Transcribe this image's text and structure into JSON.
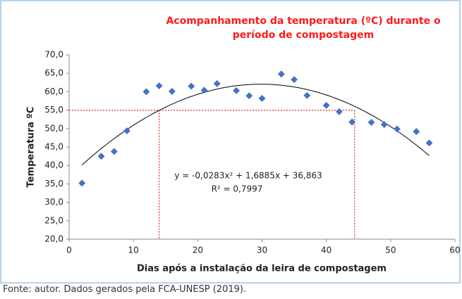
{
  "chart_data": {
    "type": "scatter",
    "title": "Acompanhamento da temperatura (ºC) durante o período de compostagem",
    "xlabel": "Dias após a instalação da leira de compostagem",
    "ylabel": "Temperatura ºC",
    "x": [
      2,
      5,
      7,
      9,
      12,
      14,
      16,
      19,
      21,
      23,
      26,
      28,
      30,
      33,
      35,
      37,
      40,
      42,
      44,
      47,
      49,
      51,
      54,
      56
    ],
    "series": [
      {
        "color": "#4472c4",
        "values": [
          35.2,
          42.5,
          43.8,
          49.4,
          60.0,
          61.6,
          60.1,
          61.5,
          60.4,
          62.2,
          60.3,
          58.9,
          58.2,
          64.8,
          63.3,
          59.0,
          56.3,
          54.6,
          51.8,
          51.7,
          51.1,
          49.9,
          49.2,
          46.1
        ]
      }
    ],
    "xlim": [
      0,
      60
    ],
    "xticks": [
      0,
      10,
      20,
      30,
      40,
      50,
      60
    ],
    "ylim": [
      20,
      70
    ],
    "yticks": [
      {
        "value": 20,
        "label": "20,0"
      },
      {
        "value": 25,
        "label": "25,0"
      },
      {
        "value": 30,
        "label": "30,0"
      },
      {
        "value": 35,
        "label": "35,0"
      },
      {
        "value": 40,
        "label": "40,0"
      },
      {
        "value": 45,
        "label": "45,0"
      },
      {
        "value": 50,
        "label": "50,0"
      },
      {
        "value": 55,
        "label": "55,0"
      },
      {
        "value": 60,
        "label": "60,0"
      },
      {
        "value": 65,
        "label": "65,0"
      },
      {
        "value": 70,
        "label": "70,0"
      }
    ],
    "trendline": {
      "equation": "y = -0,0283x² + 1,6885x + 36,863",
      "coefficients": [
        -0.0283,
        1.6885,
        36.863
      ],
      "r2_label": "R² = 0,7997",
      "r2": 0.7997
    },
    "reference_y": 55,
    "reference_x": [
      14,
      44.4
    ],
    "reference_color": "#e00000"
  },
  "source": "Fonte: autor. Dados gerados pela FCA-UNESP (2019)."
}
